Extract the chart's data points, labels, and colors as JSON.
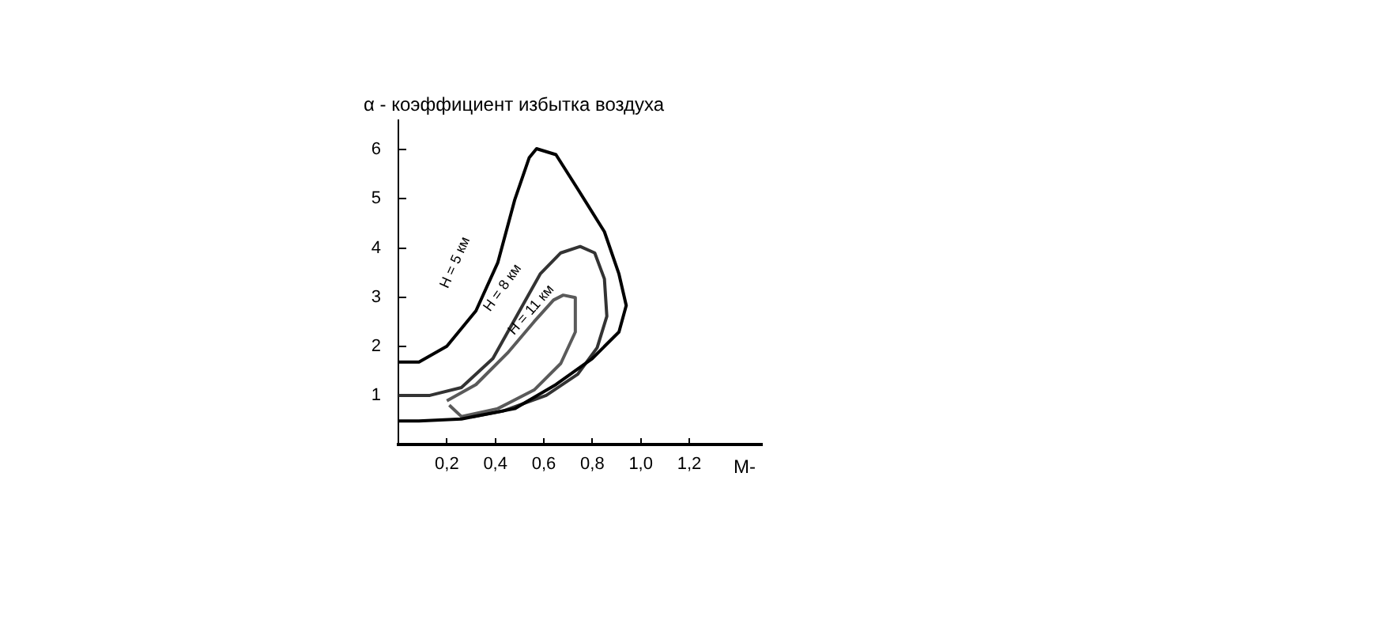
{
  "chart_data": {
    "type": "line",
    "xlabel": "М-",
    "ylabel": "α - коэффициент избытка воздуха",
    "xlim": [
      0,
      1.5
    ],
    "ylim": [
      0,
      6.6
    ],
    "xticks": [
      {
        "value": 0.2,
        "label": "0,2"
      },
      {
        "value": 0.4,
        "label": "0,4"
      },
      {
        "value": 0.6,
        "label": "0,6"
      },
      {
        "value": 0.8,
        "label": "0,8"
      },
      {
        "value": 1.0,
        "label": "1,0"
      },
      {
        "value": 1.2,
        "label": "1,2"
      }
    ],
    "yticks": [
      1,
      2,
      3,
      4,
      5,
      6
    ],
    "grid": false,
    "legend": false,
    "marker": "none",
    "line_style": "solid",
    "series": [
      {
        "color": "#000000",
        "x": [
          0,
          0.085,
          0.2,
          0.32,
          0.41,
          0.48,
          0.54,
          0.57,
          0.65,
          0.74,
          0.85,
          0.91,
          0.94,
          0.91,
          0.8,
          0.65,
          0.48,
          0.26,
          0.085,
          0
        ],
        "values": [
          1.68,
          1.68,
          2.0,
          2.72,
          3.7,
          4.98,
          5.84,
          6.02,
          5.9,
          5.2,
          4.33,
          3.47,
          2.83,
          2.29,
          1.75,
          1.22,
          0.73,
          0.52,
          0.48,
          0.48
        ]
      },
      {
        "color": "#333333",
        "x": [
          0,
          0.13,
          0.26,
          0.39,
          0.5,
          0.585,
          0.67,
          0.75,
          0.81,
          0.85,
          0.86,
          0.82,
          0.74,
          0.61,
          0.43,
          0.3
        ],
        "values": [
          1.0,
          1.0,
          1.16,
          1.75,
          2.72,
          3.47,
          3.9,
          4.03,
          3.9,
          3.37,
          2.61,
          1.97,
          1.43,
          1.0,
          0.68,
          0.56
        ]
      },
      {
        "color": "#5a5a5a",
        "x": [
          0.2,
          0.32,
          0.45,
          0.56,
          0.64,
          0.68,
          0.73,
          0.73,
          0.67,
          0.56,
          0.41,
          0.26,
          0.21
        ],
        "values": [
          0.89,
          1.22,
          1.86,
          2.5,
          2.94,
          3.04,
          2.99,
          2.29,
          1.65,
          1.11,
          0.73,
          0.57,
          0.8
        ]
      }
    ],
    "annotations": [
      "H = 5 км",
      "H = 8 км",
      "H = 11 км"
    ]
  }
}
